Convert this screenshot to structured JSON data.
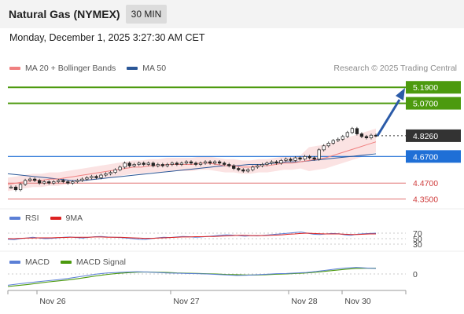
{
  "header": {
    "title": "Natural Gas (NYMEX)",
    "timeframe": "30 MIN"
  },
  "datetime": "Monday, December 1, 2025 3:27:30 AM CET",
  "legend": {
    "ma20_label": "MA 20 + Bollinger Bands",
    "ma20_color": "#f08080",
    "ma50_label": "MA 50",
    "ma50_color": "#2b5797"
  },
  "credit": "Research © 2025 Trading Central",
  "levels": [
    {
      "label": "5.1900",
      "value": 5.19,
      "kind": "resistance",
      "color": "#4c9a0e"
    },
    {
      "label": "5.0700",
      "value": 5.07,
      "kind": "resistance",
      "color": "#4c9a0e"
    },
    {
      "label": "4.8260",
      "value": 4.826,
      "kind": "last",
      "color": "#333333"
    },
    {
      "label": "4.6700",
      "value": 4.67,
      "kind": "pivot",
      "color": "#1f6fd6"
    },
    {
      "label": "4.4700",
      "value": 4.47,
      "kind": "support",
      "color": "#e07070"
    },
    {
      "label": "4.3500",
      "value": 4.35,
      "kind": "support",
      "color": "#e07070"
    }
  ],
  "rsi": {
    "rsi_label": "RSI",
    "rsi_color": "#5b7fd6",
    "ma_label": "9MA",
    "ma_color": "#dd2222",
    "ticks": [
      "70",
      "50",
      "30"
    ]
  },
  "macd": {
    "macd_label": "MACD",
    "macd_color": "#5b7fd6",
    "signal_label": "MACD Signal",
    "signal_color": "#4c9a0e",
    "ticks": [
      "0"
    ]
  },
  "x_axis": [
    "Nov 26",
    "Nov 27",
    "Nov 28",
    "Nov 30"
  ],
  "chart_data": {
    "type": "line",
    "title": "Natural Gas (NYMEX)",
    "interval": "30 MIN",
    "y_range": [
      4.3,
      5.28
    ],
    "x_ticks": [
      "Nov 26",
      "Nov 27",
      "Nov 28",
      "Nov 30"
    ],
    "price": [
      4.44,
      4.42,
      4.46,
      4.49,
      4.5,
      4.49,
      4.47,
      4.48,
      4.47,
      4.48,
      4.49,
      4.48,
      4.47,
      4.48,
      4.49,
      4.5,
      4.51,
      4.52,
      4.51,
      4.53,
      4.54,
      4.55,
      4.57,
      4.59,
      4.62,
      4.6,
      4.61,
      4.62,
      4.61,
      4.62,
      4.6,
      4.61,
      4.6,
      4.61,
      4.62,
      4.61,
      4.62,
      4.63,
      4.62,
      4.61,
      4.62,
      4.63,
      4.62,
      4.63,
      4.62,
      4.61,
      4.6,
      4.58,
      4.57,
      4.56,
      4.57,
      4.59,
      4.6,
      4.61,
      4.62,
      4.63,
      4.62,
      4.64,
      4.65,
      4.64,
      4.66,
      4.65,
      4.67,
      4.66,
      4.65,
      4.72,
      4.75,
      4.77,
      4.79,
      4.8,
      4.82,
      4.85,
      4.88,
      4.84,
      4.82,
      4.81,
      4.83,
      4.826
    ],
    "ma20": [
      4.46,
      4.47,
      4.48,
      4.49,
      4.49,
      4.5,
      4.5,
      4.51,
      4.52,
      4.53,
      4.54,
      4.55,
      4.56,
      4.57,
      4.58,
      4.59,
      4.59,
      4.6,
      4.6,
      4.61,
      4.61,
      4.61,
      4.61,
      4.62,
      4.62,
      4.61,
      4.6,
      4.6,
      4.59,
      4.59,
      4.6,
      4.6,
      4.61,
      4.62,
      4.62,
      4.63,
      4.64,
      4.65,
      4.66,
      4.68,
      4.7,
      4.72,
      4.74,
      4.76,
      4.78
    ],
    "ma50": [
      4.54,
      4.53,
      4.52,
      4.51,
      4.5,
      4.49,
      4.49,
      4.5,
      4.51,
      4.52,
      4.53,
      4.54,
      4.55,
      4.56,
      4.57,
      4.58,
      4.59,
      4.6,
      4.6,
      4.61,
      4.61,
      4.62,
      4.63,
      4.63,
      4.64,
      4.65,
      4.66,
      4.67,
      4.68,
      4.69
    ],
    "rsi": [
      48,
      46,
      50,
      52,
      55,
      52,
      50,
      51,
      53,
      55,
      56,
      54,
      52,
      55,
      57,
      58,
      56,
      55,
      54,
      52,
      50,
      48,
      47,
      50,
      53,
      55,
      54,
      56,
      58,
      57,
      55,
      56,
      58,
      60,
      62,
      64,
      63,
      61,
      59,
      61,
      60,
      62,
      64,
      66,
      68,
      70,
      72,
      74,
      70,
      66,
      65,
      67,
      69,
      68,
      64,
      62,
      66,
      68,
      69,
      70
    ],
    "rsi_ma": [
      50,
      50,
      51,
      52,
      52,
      53,
      53,
      53,
      54,
      54,
      55,
      55,
      55,
      55,
      56,
      56,
      55,
      55,
      55,
      54,
      53,
      52,
      51,
      51,
      52,
      53,
      54,
      55,
      56,
      56,
      57,
      57,
      58,
      58,
      59,
      60,
      61,
      62,
      62,
      61,
      61,
      61,
      62,
      63,
      64,
      66,
      67,
      69,
      70,
      69,
      68,
      67,
      67,
      67,
      66,
      65,
      65,
      66,
      67,
      67
    ],
    "macd": [
      -0.045,
      -0.04,
      -0.035,
      -0.031,
      -0.027,
      -0.023,
      -0.018,
      -0.012,
      -0.006,
      0.0,
      0.004,
      0.006,
      0.008,
      0.009,
      0.008,
      0.006,
      0.004,
      0.003,
      0.002,
      0.001,
      0.0,
      -0.002,
      -0.004,
      -0.006,
      -0.005,
      -0.003,
      -0.001,
      0.001,
      0.002,
      0.004,
      0.006,
      0.01,
      0.015,
      0.02,
      0.024,
      0.026,
      0.024,
      0.022
    ],
    "macd_signal": [
      -0.05,
      -0.046,
      -0.042,
      -0.037,
      -0.032,
      -0.028,
      -0.024,
      -0.019,
      -0.013,
      -0.007,
      -0.002,
      0.002,
      0.005,
      0.007,
      0.008,
      0.007,
      0.006,
      0.004,
      0.003,
      0.002,
      0.001,
      0.0,
      -0.002,
      -0.003,
      -0.004,
      -0.004,
      -0.003,
      -0.001,
      0.0,
      0.002,
      0.004,
      0.007,
      0.011,
      0.015,
      0.019,
      0.022,
      0.023,
      0.023
    ]
  }
}
